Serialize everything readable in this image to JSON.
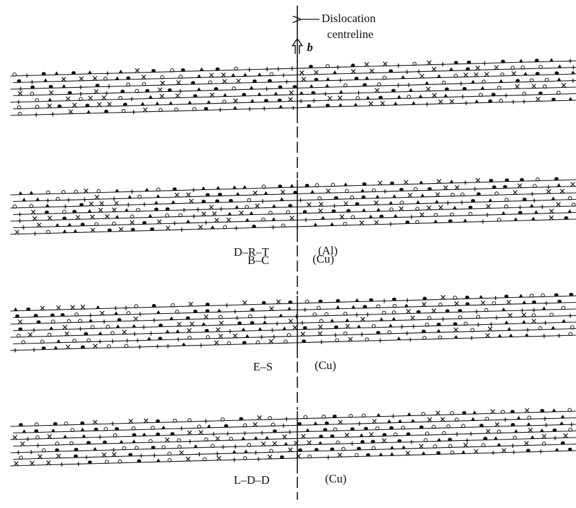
{
  "annotation": [
    "Dislocation",
    "centreline"
  ],
  "burgers_vector": "b",
  "panels": [
    {
      "model": "B–C",
      "metal": "(Cu)"
    },
    {
      "model": "D–R–T",
      "metal": "(Al)"
    },
    {
      "model": "E–S",
      "metal": "(Cu)"
    },
    {
      "model": "L–D–D",
      "metal": "(Cu)"
    }
  ]
}
